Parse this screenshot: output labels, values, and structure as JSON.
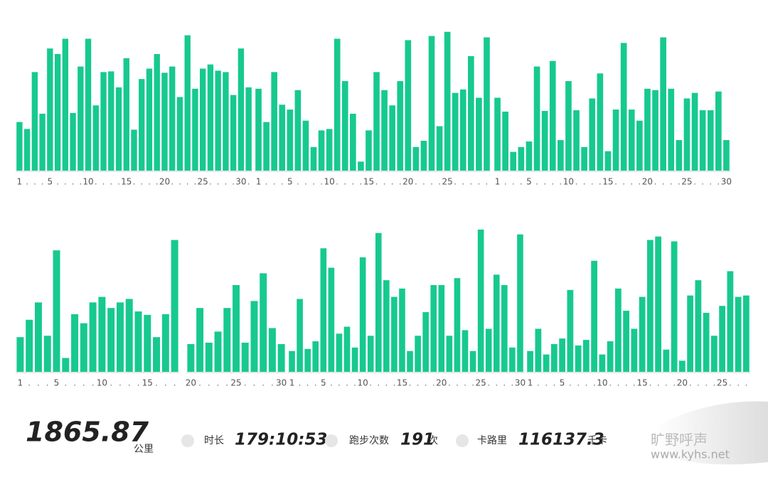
{
  "chart_data": {
    "type": "bar",
    "color": "#17c98f",
    "ylim": [
      0,
      210
    ],
    "panels": [
      {
        "categories": [
          "1",
          null,
          null,
          null,
          "5",
          null,
          null,
          null,
          null,
          "10",
          null,
          null,
          null,
          null,
          "15",
          null,
          null,
          null,
          null,
          "20",
          null,
          null,
          null,
          null,
          "25",
          null,
          null,
          null,
          null,
          "30",
          null
        ],
        "values": [
          70,
          60,
          142,
          82,
          176,
          168,
          190,
          83,
          150,
          190,
          94,
          142,
          143,
          120,
          162,
          59,
          132,
          147,
          168,
          141,
          150,
          106,
          195,
          118,
          147,
          153,
          144,
          142,
          109,
          176,
          120
        ]
      },
      {
        "categories": [
          "1",
          null,
          null,
          null,
          "5",
          null,
          null,
          null,
          null,
          "10",
          null,
          null,
          null,
          null,
          "15",
          null,
          null,
          null,
          null,
          "20",
          null,
          null,
          null,
          null,
          "25",
          null,
          null,
          null,
          null,
          null
        ],
        "values": [
          118,
          70,
          142,
          95,
          88,
          116,
          72,
          34,
          58,
          60,
          190,
          129,
          82,
          13,
          58,
          142,
          116,
          94,
          129,
          188,
          34,
          43,
          194,
          64,
          200,
          112,
          117,
          165,
          105,
          192
        ]
      },
      {
        "categories": [
          "1",
          null,
          null,
          null,
          "5",
          null,
          null,
          null,
          null,
          "10",
          null,
          null,
          null,
          null,
          "15",
          null,
          null,
          null,
          null,
          "20",
          null,
          null,
          null,
          null,
          "25",
          null,
          null,
          null,
          null,
          "30"
        ],
        "values": [
          105,
          85,
          27,
          34,
          42,
          150,
          86,
          158,
          44,
          129,
          87,
          34,
          104,
          140,
          28,
          88,
          184,
          88,
          72,
          118,
          116,
          192,
          118,
          44,
          104,
          112,
          87,
          87,
          114,
          44
        ]
      },
      {
        "categories": [
          "1",
          null,
          null,
          null,
          "5",
          null,
          null,
          null,
          null,
          "10",
          null,
          null,
          null,
          null,
          "15",
          null,
          null,
          null
        ],
        "values": [
          50,
          75,
          100,
          52,
          175,
          20,
          83,
          70,
          100,
          108,
          92,
          100,
          105,
          87,
          82,
          50,
          83,
          190
        ]
      },
      {
        "categories": [
          "20",
          null,
          null,
          null,
          null,
          "25",
          null,
          null,
          null,
          null,
          "30"
        ],
        "values": [
          40,
          92,
          42,
          58,
          92,
          125,
          42,
          102,
          142,
          63,
          40
        ]
      },
      {
        "categories": [
          "1",
          null,
          null,
          null,
          "5",
          null,
          null,
          null,
          null,
          "10",
          null,
          null,
          null,
          null,
          "15",
          null,
          null,
          null,
          null,
          "20",
          null,
          null,
          null,
          null,
          "25",
          null,
          null,
          null,
          null,
          "30"
        ],
        "values": [
          30,
          105,
          33,
          44,
          178,
          150,
          55,
          65,
          35,
          165,
          52,
          200,
          132,
          108,
          120,
          30,
          52,
          86,
          125,
          125,
          52,
          135,
          60,
          30,
          205,
          62,
          140,
          125,
          35,
          198
        ]
      },
      {
        "categories": [
          "1",
          null,
          null,
          null,
          "5",
          null,
          null,
          null,
          null,
          "10",
          null,
          null,
          null,
          null,
          "15",
          null,
          null,
          null,
          null,
          "20",
          null,
          null,
          null,
          null,
          "25",
          null,
          null,
          null
        ],
        "values": [
          30,
          62,
          25,
          40,
          48,
          118,
          38,
          46,
          160,
          25,
          44,
          120,
          88,
          62,
          108,
          190,
          195,
          32,
          188,
          16,
          110,
          132,
          85,
          52,
          95,
          145,
          108,
          110
        ]
      }
    ]
  },
  "summary": {
    "distance": "1865.87",
    "distance_unit": "公里",
    "duration_label": "时长",
    "duration": "179:10:53",
    "runs_label": "跑步次数",
    "runs": "191",
    "runs_unit": "次",
    "calories_label": "卡路里",
    "calories": "116137.3",
    "calories_unit": "千卡"
  },
  "watermark": {
    "name": "旷野呼声",
    "url": "www.kyhs.net"
  }
}
